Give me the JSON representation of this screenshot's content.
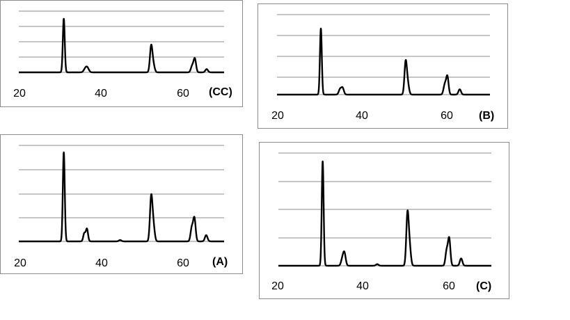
{
  "chart_data": [
    {
      "type": "line",
      "panel_label": "(CC)",
      "x_ticks": [
        "20",
        "40",
        "60"
      ],
      "xlim": [
        20,
        67
      ],
      "ylim": [
        0,
        100
      ],
      "grid": true,
      "baseline": 0,
      "peaks": [
        {
          "x": 30.3,
          "y": 100,
          "w": 0.22
        },
        {
          "x": 35.2,
          "y": 6,
          "w": 0.35
        },
        {
          "x": 35.7,
          "y": 8,
          "w": 0.35
        },
        {
          "x": 50.3,
          "y": 48,
          "w": 0.28
        },
        {
          "x": 50.8,
          "y": 14,
          "w": 0.3
        },
        {
          "x": 59.7,
          "y": 12,
          "w": 0.3
        },
        {
          "x": 60.3,
          "y": 25,
          "w": 0.28
        },
        {
          "x": 63.0,
          "y": 6,
          "w": 0.3
        }
      ]
    },
    {
      "type": "line",
      "panel_label": "(B)",
      "x_ticks": [
        "20",
        "40",
        "60"
      ],
      "xlim": [
        20,
        70
      ],
      "ylim": [
        0,
        100
      ],
      "grid": true,
      "baseline": 0,
      "peaks": [
        {
          "x": 30.3,
          "y": 100,
          "w": 0.22
        },
        {
          "x": 34.8,
          "y": 8,
          "w": 0.3
        },
        {
          "x": 35.4,
          "y": 10,
          "w": 0.3
        },
        {
          "x": 50.2,
          "y": 48,
          "w": 0.28
        },
        {
          "x": 50.7,
          "y": 16,
          "w": 0.3
        },
        {
          "x": 59.4,
          "y": 15,
          "w": 0.3
        },
        {
          "x": 60.0,
          "y": 27,
          "w": 0.28
        },
        {
          "x": 62.9,
          "y": 8,
          "w": 0.3
        }
      ]
    },
    {
      "type": "line",
      "panel_label": "(A)",
      "x_ticks": [
        "20",
        "40",
        "60"
      ],
      "xlim": [
        20,
        67
      ],
      "ylim": [
        0,
        100
      ],
      "grid": true,
      "baseline": 0,
      "peaks": [
        {
          "x": 30.3,
          "y": 100,
          "w": 0.22
        },
        {
          "x": 35.0,
          "y": 9,
          "w": 0.25
        },
        {
          "x": 35.6,
          "y": 14,
          "w": 0.25
        },
        {
          "x": 43.2,
          "y": 1.5,
          "w": 0.3
        },
        {
          "x": 50.3,
          "y": 48,
          "w": 0.28
        },
        {
          "x": 50.8,
          "y": 18,
          "w": 0.3
        },
        {
          "x": 59.6,
          "y": 15,
          "w": 0.28
        },
        {
          "x": 60.2,
          "y": 26,
          "w": 0.28
        },
        {
          "x": 62.9,
          "y": 7,
          "w": 0.3
        }
      ]
    },
    {
      "type": "line",
      "panel_label": "(C)",
      "x_ticks": [
        "20",
        "40",
        "60"
      ],
      "xlim": [
        20,
        70
      ],
      "ylim": [
        0,
        100
      ],
      "grid": true,
      "baseline": 0,
      "peaks": [
        {
          "x": 30.4,
          "y": 100,
          "w": 0.22
        },
        {
          "x": 35.0,
          "y": 6,
          "w": 0.3
        },
        {
          "x": 35.5,
          "y": 12,
          "w": 0.3
        },
        {
          "x": 43.2,
          "y": 1.5,
          "w": 0.3
        },
        {
          "x": 50.3,
          "y": 48,
          "w": 0.28
        },
        {
          "x": 50.8,
          "y": 18,
          "w": 0.3
        },
        {
          "x": 59.5,
          "y": 14,
          "w": 0.28
        },
        {
          "x": 60.1,
          "y": 26,
          "w": 0.28
        },
        {
          "x": 62.9,
          "y": 7,
          "w": 0.3
        }
      ]
    }
  ]
}
